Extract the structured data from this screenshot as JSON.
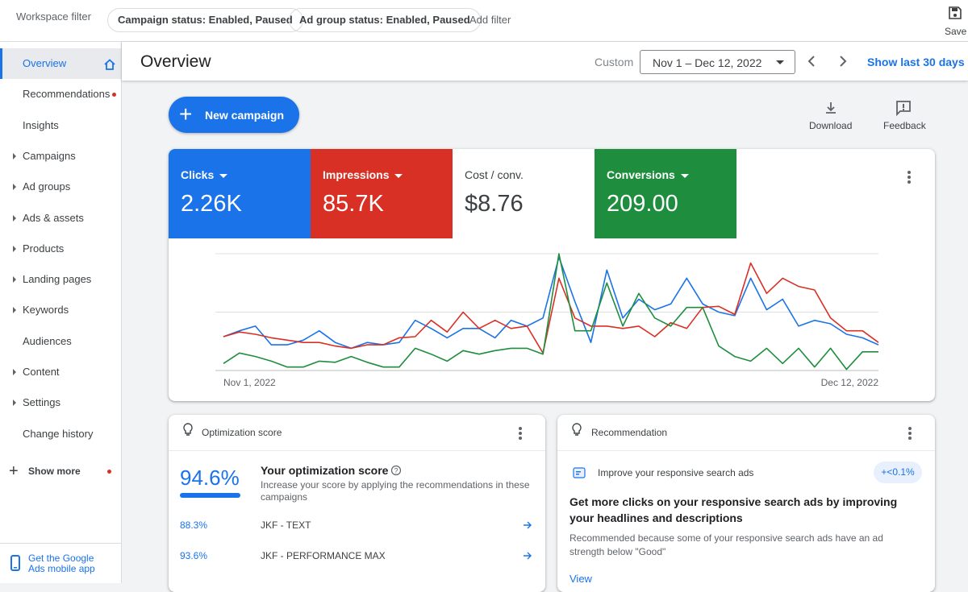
{
  "header": {
    "workspace_filter": "Workspace filter",
    "filters": [
      "Campaign status: Enabled, Paused",
      "Ad group status: Enabled, Paused"
    ],
    "add_filter": "Add filter",
    "save": "Save"
  },
  "sidebar": {
    "items": [
      {
        "label": "Overview",
        "active": true
      },
      {
        "label": "Recommendations",
        "dot": true
      },
      {
        "label": "Insights"
      },
      {
        "label": "Campaigns",
        "arrow": true
      },
      {
        "label": "Ad groups",
        "arrow": true
      },
      {
        "label": "Ads & assets",
        "arrow": true
      },
      {
        "label": "Products",
        "arrow": true
      },
      {
        "label": "Landing pages",
        "arrow": true
      },
      {
        "label": "Keywords",
        "arrow": true
      },
      {
        "label": "Audiences"
      },
      {
        "label": "Content",
        "arrow": true
      },
      {
        "label": "Settings",
        "arrow": true
      },
      {
        "label": "Change history"
      }
    ],
    "show_more": "Show more",
    "mobile_app": "Get the Google Ads mobile app"
  },
  "topbar": {
    "title": "Overview",
    "custom": "Custom",
    "date_range": "Nov 1 – Dec 12, 2022",
    "show_last": "Show last 30 days"
  },
  "actions": {
    "new_campaign": "New campaign",
    "download": "Download",
    "feedback": "Feedback"
  },
  "cost_per_conversion": {
    "label": "Cost / conv.",
    "value": "$8.76"
  },
  "chart_data": {
    "type": "line",
    "categories": [
      "Nov 1, 2022",
      null,
      null,
      null,
      null,
      null,
      null,
      null,
      null,
      null,
      null,
      null,
      null,
      null,
      null,
      null,
      null,
      null,
      null,
      null,
      null,
      null,
      null,
      null,
      null,
      null,
      null,
      null,
      null,
      null,
      null,
      null,
      null,
      null,
      null,
      null,
      null,
      null,
      null,
      null,
      null,
      "Dec 12, 2022"
    ],
    "ylim": [
      0,
      100
    ],
    "grid": true,
    "series": [
      {
        "name": "Clicks",
        "total": "2.26K",
        "color": "#1a73e8",
        "values": [
          29,
          34,
          38,
          22,
          22,
          26,
          34,
          24,
          19,
          24,
          22,
          24,
          43,
          36,
          28,
          36,
          36,
          28,
          43,
          38,
          45,
          97,
          59,
          24,
          86,
          45,
          61,
          52,
          57,
          79,
          57,
          50,
          47,
          79,
          52,
          61,
          38,
          43,
          40,
          31,
          28,
          22
        ]
      },
      {
        "name": "Impressions",
        "total": "85.7K",
        "color": "#d93025",
        "values": [
          29,
          33,
          31,
          28,
          26,
          24,
          24,
          21,
          19,
          22,
          22,
          28,
          29,
          43,
          33,
          50,
          36,
          43,
          36,
          38,
          15,
          79,
          45,
          38,
          38,
          36,
          38,
          29,
          41,
          36,
          54,
          55,
          48,
          92,
          66,
          79,
          72,
          69,
          45,
          34,
          34,
          24
        ]
      },
      {
        "name": "Conversions",
        "total": "209.00",
        "color": "#1e8e3e",
        "values": [
          6,
          15,
          12,
          8,
          3,
          3,
          8,
          7,
          12,
          7,
          3,
          3,
          19,
          14,
          8,
          17,
          14,
          17,
          19,
          19,
          14,
          100,
          34,
          34,
          75,
          38,
          66,
          45,
          38,
          54,
          54,
          21,
          12,
          8,
          19,
          6,
          19,
          3,
          19,
          1,
          16,
          16
        ]
      }
    ]
  },
  "optimization": {
    "title": "Optimization score",
    "score": "94.6%",
    "heading": "Your optimization score",
    "description": "Increase your score by applying the recommendations in these campaigns",
    "campaigns": [
      {
        "score": "88.3%",
        "name": "JKF - TEXT"
      },
      {
        "score": "93.6%",
        "name": "JKF - PERFORMANCE MAX"
      }
    ]
  },
  "recommendation": {
    "title": "Recommendation",
    "item": "Improve your responsive search ads",
    "badge": "+<0.1%",
    "heading": "Get more clicks on your responsive search ads by improving your headlines and descriptions",
    "body": "Recommended because some of your responsive search ads have an ad strength below \"Good\"",
    "link": "View"
  }
}
